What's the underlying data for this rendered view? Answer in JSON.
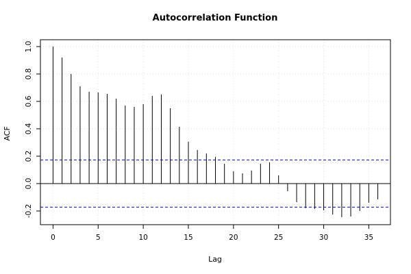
{
  "chart_data": {
    "type": "bar",
    "title": "Autocorrelation Function",
    "xlabel": "Lag",
    "ylabel": "ACF",
    "xlim": [
      -1.4,
      37.4
    ],
    "ylim": [
      -0.3,
      1.05
    ],
    "x_ticks": [
      0,
      5,
      10,
      15,
      20,
      25,
      30,
      35
    ],
    "y_ticks": [
      -0.2,
      0.0,
      0.2,
      0.4,
      0.6,
      0.8,
      1.0
    ],
    "y_tick_labels": [
      "-0.2",
      "0.0",
      "0.2",
      "0.4",
      "0.6",
      "0.8",
      "1.0"
    ],
    "lags": [
      0,
      1,
      2,
      3,
      4,
      5,
      6,
      7,
      8,
      9,
      10,
      11,
      12,
      13,
      14,
      15,
      16,
      17,
      18,
      19,
      20,
      21,
      22,
      23,
      24,
      25,
      26,
      27,
      28,
      29,
      30,
      31,
      32,
      33,
      34,
      35,
      36
    ],
    "values": [
      1.0,
      0.92,
      0.8,
      0.71,
      0.67,
      0.665,
      0.655,
      0.62,
      0.57,
      0.56,
      0.58,
      0.64,
      0.65,
      0.55,
      0.415,
      0.305,
      0.245,
      0.22,
      0.195,
      0.145,
      0.09,
      0.075,
      0.095,
      0.145,
      0.155,
      0.06,
      -0.055,
      -0.135,
      -0.18,
      -0.185,
      -0.195,
      -0.225,
      -0.245,
      -0.24,
      -0.2,
      -0.14,
      -0.115
    ],
    "confidence_bound": 0.172,
    "colors": {
      "spike": "#000000",
      "confidence_line": "#0000ff",
      "grid": "#dddddd",
      "zero_line": "#000000"
    },
    "grid": true
  }
}
